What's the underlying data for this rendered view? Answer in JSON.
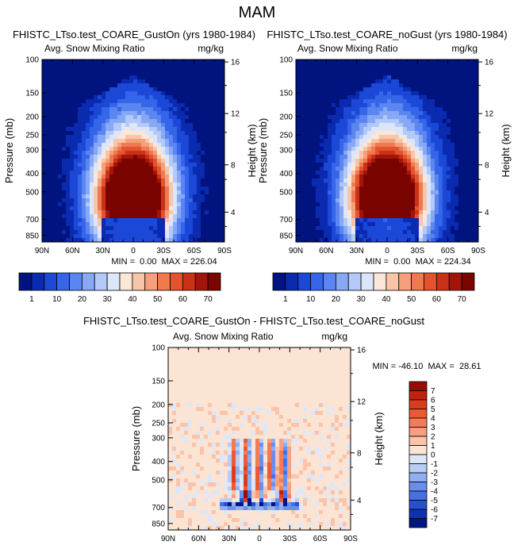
{
  "figure_title": "MAM",
  "chart_data": [
    {
      "type": "heatmap",
      "id": "top-left",
      "title": "FHISTC_LTso.test_COARE_GustOn (yrs 1980-1984)",
      "subtitle": "Avg. Snow Mixing Ratio",
      "units": "mg/kg",
      "xlabel": "",
      "ylabel": "Pressure (mb)",
      "ylabel_right": "Height (km)",
      "x_ticks": [
        "90N",
        "60N",
        "30N",
        "0",
        "30S",
        "60S",
        "90S"
      ],
      "y_ticks": [
        "100",
        "150",
        "200",
        "250",
        "300",
        "400",
        "500",
        "700",
        "850"
      ],
      "y_ticks_right": [
        "16",
        "12",
        "8",
        "4"
      ],
      "stats": "MIN =  0.00  MAX = 226.04",
      "min": 0.0,
      "max": 226.04
    },
    {
      "type": "heatmap",
      "id": "top-right",
      "title": "FHISTC_LTso.test_COARE_noGust (yrs 1980-1984)",
      "subtitle": "Avg. Snow Mixing Ratio",
      "units": "mg/kg",
      "xlabel": "",
      "ylabel": "Pressure (mb)",
      "ylabel_right": "Height (km)",
      "x_ticks": [
        "90N",
        "60N",
        "30N",
        "0",
        "30S",
        "60S",
        "90S"
      ],
      "y_ticks": [
        "100",
        "150",
        "200",
        "250",
        "300",
        "400",
        "500",
        "700",
        "850"
      ],
      "y_ticks_right": [
        "16",
        "12",
        "8",
        "4"
      ],
      "stats": "MIN =  0.00  MAX = 224.34",
      "min": 0.0,
      "max": 224.34
    },
    {
      "type": "heatmap",
      "id": "difference",
      "title": "FHISTC_LTso.test_COARE_GustOn - FHISTC_LTso.test_COARE_noGust",
      "subtitle": "Avg. Snow Mixing Ratio",
      "units": "mg/kg",
      "xlabel": "",
      "ylabel": "Pressure (mb)",
      "ylabel_right": "Height (km)",
      "x_ticks": [
        "90N",
        "60N",
        "30N",
        "0",
        "30S",
        "60S",
        "90S"
      ],
      "y_ticks": [
        "100",
        "150",
        "200",
        "250",
        "300",
        "400",
        "500",
        "700",
        "850"
      ],
      "y_ticks_right": [
        "16",
        "12",
        "8",
        "4"
      ],
      "stats": "MIN = -46.10  MAX =  28.61",
      "min": -46.1,
      "max": 28.61
    }
  ],
  "colorbars": {
    "mean": {
      "orientation": "horizontal",
      "labels": [
        "1",
        "10",
        "20",
        "30",
        "40",
        "50",
        "60",
        "70"
      ],
      "colors": [
        "#00137f",
        "#0a2ab0",
        "#1b48d6",
        "#3565e8",
        "#5b85f0",
        "#86a8f5",
        "#b3c9f8",
        "#dbe6fb",
        "#fbe7d8",
        "#f8c5a8",
        "#f4a07a",
        "#ef7a50",
        "#e4532e",
        "#c93218",
        "#a3150b",
        "#7a0500"
      ]
    },
    "diff": {
      "orientation": "vertical",
      "labels": [
        "7",
        "6",
        "5",
        "4",
        "3",
        "2",
        "1",
        "0",
        "-1",
        "-2",
        "-3",
        "-4",
        "-5",
        "-6",
        "-7"
      ],
      "colors": [
        "#9c0a05",
        "#c0220f",
        "#dc3c1e",
        "#ec5a35",
        "#f27c58",
        "#f6a07f",
        "#f9c4aa",
        "#fce4d4",
        "#dce8f9",
        "#b7cdf5",
        "#90aff0",
        "#6a8feb",
        "#4670e3",
        "#2550d4",
        "#0f33b0",
        "#001680"
      ]
    }
  }
}
